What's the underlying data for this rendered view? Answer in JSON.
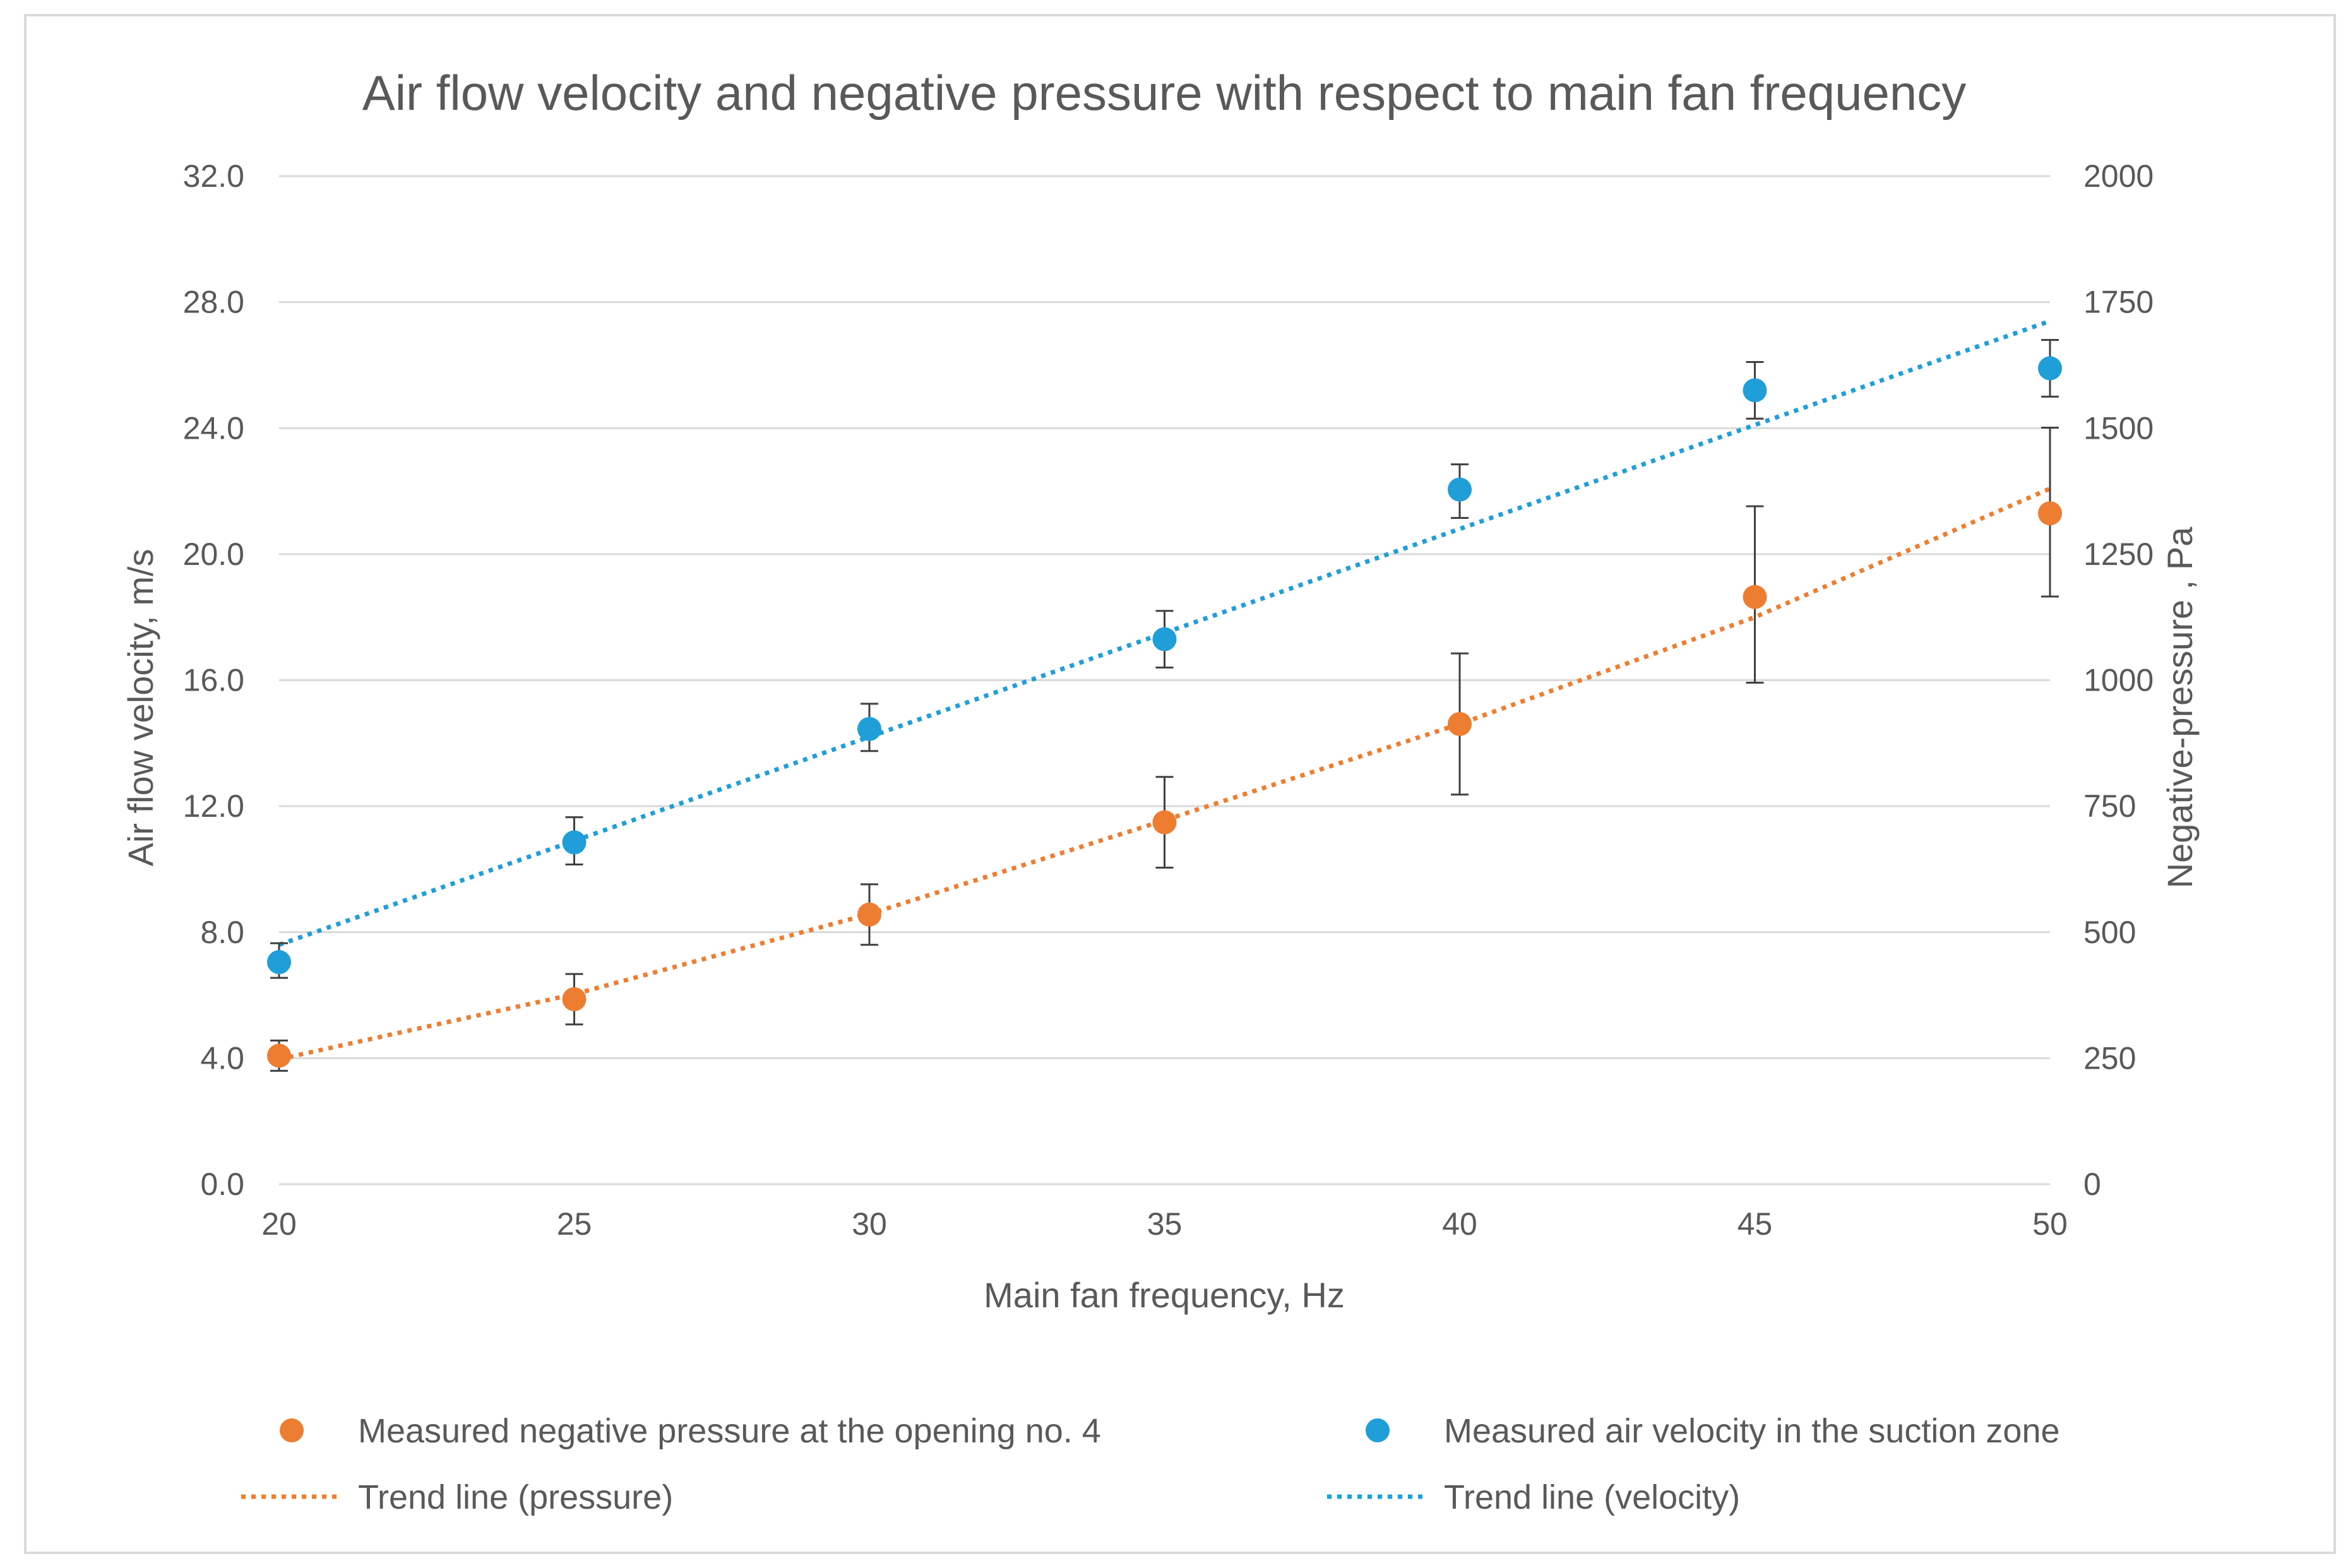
{
  "chart_data": {
    "type": "scatter",
    "title": "Air flow velocity and negative pressure with respect to main fan frequency",
    "xlabel": "Main fan frequency, Hz",
    "ylabel": "Air flow velocity, m/s",
    "y2label": "Negative-pressure , Pa",
    "xlim": [
      20,
      50
    ],
    "ylim": [
      0,
      32
    ],
    "y2lim": [
      0,
      2000
    ],
    "x_ticks": [
      "20",
      "25",
      "30",
      "35",
      "40",
      "45",
      "50"
    ],
    "y_ticks": [
      "0.0",
      "4.0",
      "8.0",
      "12.0",
      "16.0",
      "20.0",
      "24.0",
      "28.0",
      "32.0"
    ],
    "y2_ticks": [
      "0",
      "250",
      "500",
      "750",
      "1000",
      "1250",
      "1500",
      "1750",
      "2000"
    ],
    "grid": true,
    "legend_position": "bottom",
    "series": [
      {
        "name": "Measured negative pressure at the opening no. 4",
        "axis": "right",
        "color": "#ed7d31",
        "x": [
          20,
          25,
          30,
          35,
          40,
          45,
          50
        ],
        "values": [
          255,
          367,
          535,
          718,
          913,
          1165,
          1331
        ],
        "err_low": [
          30,
          50,
          60,
          90,
          140,
          170,
          165
        ],
        "err_high": [
          30,
          50,
          60,
          90,
          140,
          180,
          170
        ]
      },
      {
        "name": "Measured air velocity in the suction zone",
        "axis": "left",
        "color": "#1f9ed8",
        "x": [
          20,
          25,
          30,
          35,
          40,
          45,
          50
        ],
        "values": [
          7.05,
          10.85,
          14.45,
          17.3,
          22.05,
          25.2,
          25.9
        ],
        "err_low": [
          0.5,
          0.7,
          0.7,
          0.9,
          0.9,
          0.9,
          0.9
        ],
        "err_high": [
          0.6,
          0.8,
          0.8,
          0.9,
          0.8,
          0.9,
          0.9
        ]
      }
    ],
    "trendlines": [
      {
        "name": "Trend line (pressure)",
        "axis": "right",
        "color": "#ed7d31",
        "x": [
          20,
          25,
          30,
          35,
          40,
          45,
          50
        ],
        "values": [
          248,
          377,
          536,
          722,
          913,
          1125,
          1380
        ]
      },
      {
        "name": "Trend line (velocity)",
        "axis": "left",
        "color": "#1f9ed8",
        "x": [
          20,
          50
        ],
        "values": [
          7.6,
          27.4
        ]
      }
    ]
  }
}
